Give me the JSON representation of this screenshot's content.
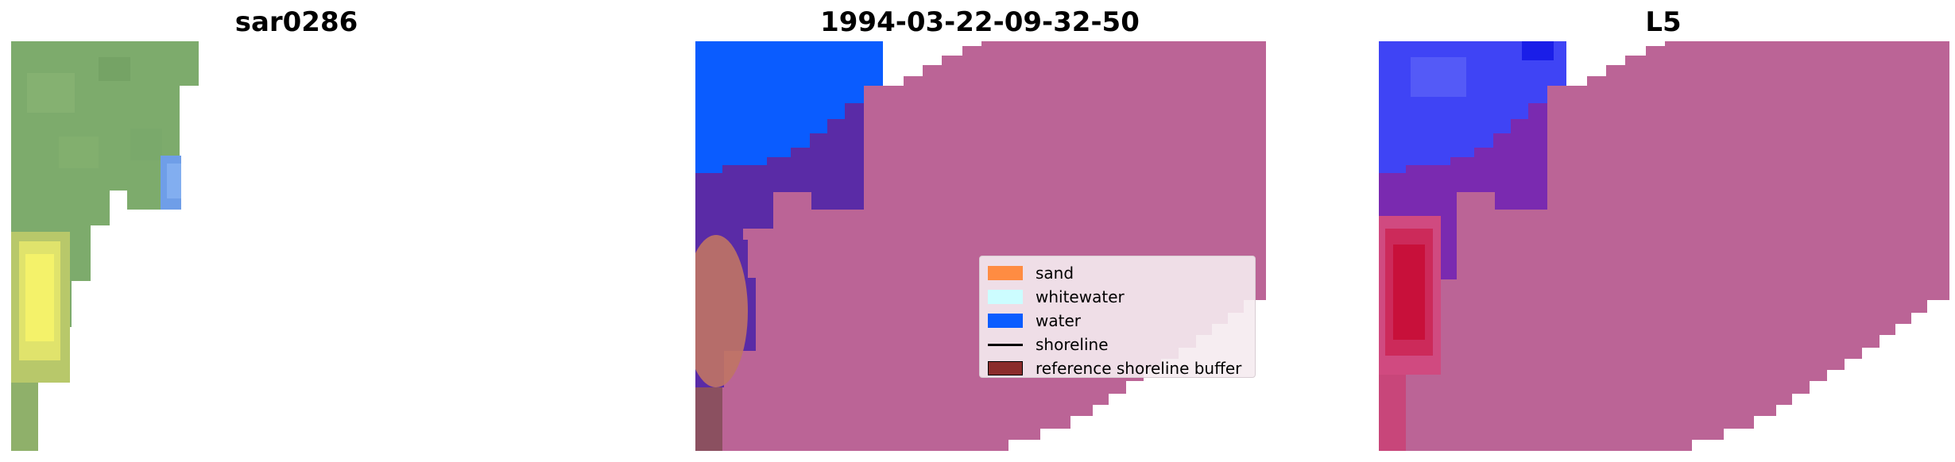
{
  "panels": [
    {
      "title": "sar0286"
    },
    {
      "title": "1994-03-22-09-32-50"
    },
    {
      "title": "L5"
    }
  ],
  "legend": {
    "items": [
      {
        "label": "sand",
        "color": "#ff8c42",
        "kind": "patch"
      },
      {
        "label": "whitewater",
        "color": "#ccfdff",
        "kind": "patch"
      },
      {
        "label": "water",
        "color": "#0a5cff",
        "kind": "patch"
      },
      {
        "label": "shoreline",
        "color": "#000000",
        "kind": "line"
      },
      {
        "label": "reference shoreline buffer",
        "color": "#8b2c2c",
        "kind": "patch-edged"
      }
    ]
  },
  "colors": {
    "land_rgb": "#7dab6c",
    "sand_rgb": "#f4f26a",
    "water_rgb": "#6f9ee8",
    "class_other": "#bb6496",
    "class_water": "#0a5cff",
    "class_mixed": "#5a2ba6",
    "class_sand": "#c07464",
    "index_blue": "#3f44f5",
    "index_red": "#c8103a"
  }
}
